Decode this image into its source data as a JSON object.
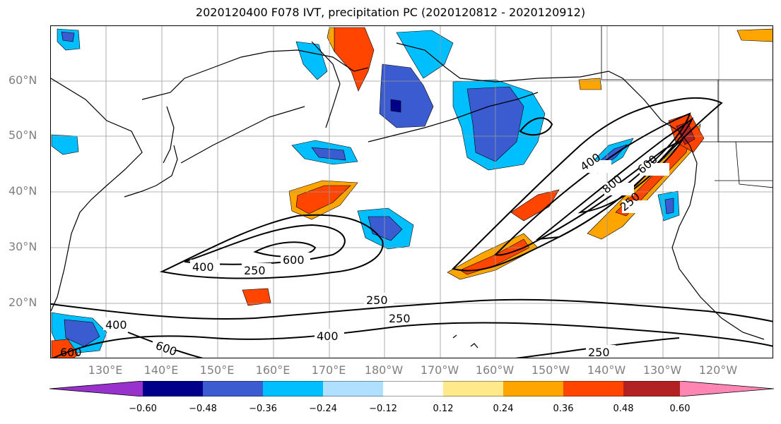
{
  "title": "2020120400 F078 IVT, precipitation PC (2020120812 - 2020120912)",
  "lat_labels": [
    "60°N",
    "50°N",
    "40°N",
    "30°N",
    "20°N"
  ],
  "lon_labels": [
    "130°E",
    "140°E",
    "150°E",
    "160°E",
    "170°E",
    "180°W",
    "170°W",
    "160°W",
    "150°W",
    "140°W",
    "130°W",
    "120°W"
  ],
  "contour_labels": [
    "400",
    "600",
    "250",
    "400",
    "800",
    "600",
    "250",
    "250",
    "250",
    "400",
    "400",
    "600",
    "250",
    "600"
  ],
  "colorbar": {
    "colors": [
      "#9932cc",
      "#00008b",
      "#3b5bd1",
      "#00bfff",
      "#b0e0ff",
      "#ffffff",
      "#ffe98a",
      "#ffa500",
      "#ff4500",
      "#b22222",
      "#ff85b3"
    ],
    "ticks": [
      "−0.60",
      "−0.48",
      "−0.36",
      "−0.24",
      "−0.12",
      "0.12",
      "0.24",
      "0.36",
      "0.48",
      "0.60"
    ]
  }
}
